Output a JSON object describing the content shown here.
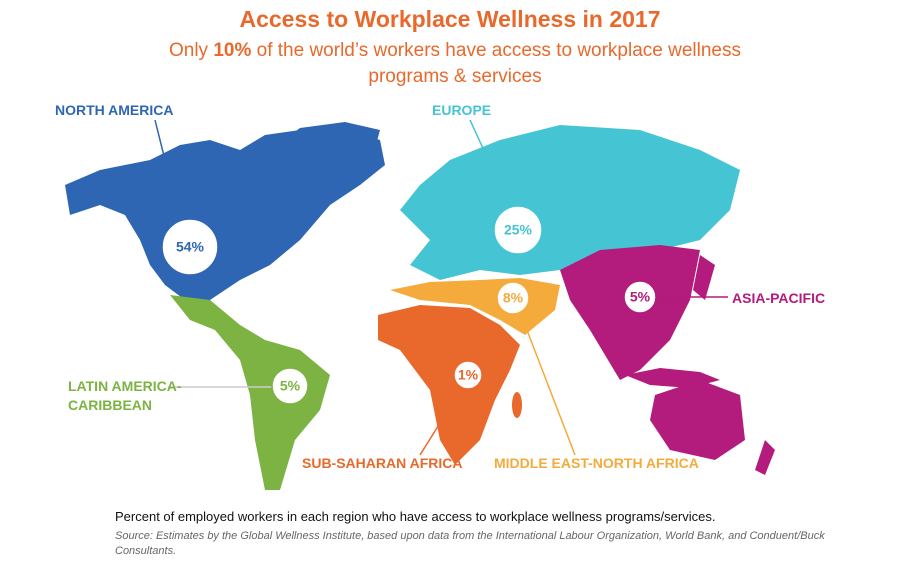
{
  "header": {
    "title": "Access to Workplace Wellness in 2017",
    "subtitle": {
      "before": "Only",
      "highlight": "10%",
      "after": "of the world’s workers have access to workplace wellness programs & services"
    }
  },
  "regions": [
    {
      "name": "NORTH AMERICA",
      "value": 54,
      "value_label": "54%",
      "color": "#2f66b3"
    },
    {
      "name": "EUROPE",
      "value": 25,
      "value_label": "25%",
      "color": "#45c4d3"
    },
    {
      "name": "ASIA-PACIFIC",
      "value": 5,
      "value_label": "5%",
      "color": "#b31b7c"
    },
    {
      "name": "LATIN AMERICA-CARIBBEAN",
      "value": 5,
      "value_label": "5%",
      "color": "#7cb342"
    },
    {
      "name": "SUB-SAHARAN AFRICA",
      "value": 1,
      "value_label": "1%",
      "color": "#e8692b"
    },
    {
      "name": "MIDDLE EAST-NORTH AFRICA",
      "value": 8,
      "value_label": "8%",
      "color": "#f5aa3c"
    }
  ],
  "footer": {
    "note": "Percent of employed workers in each region who have access to workplace wellness programs/services.",
    "source": "Source: Estimates by the Global Wellness Institute, based upon data from the International Labour Organization, World Bank, and Conduent/Buck Consultants."
  }
}
